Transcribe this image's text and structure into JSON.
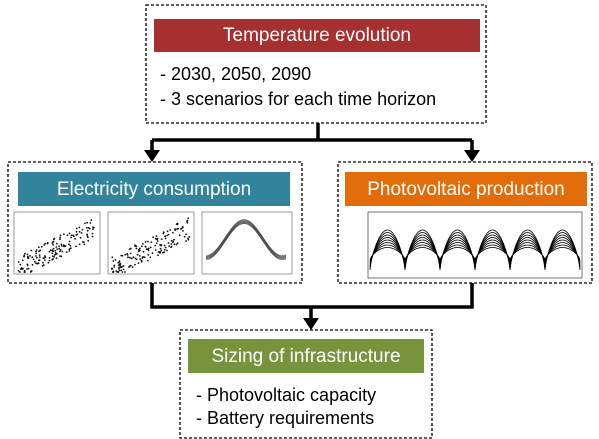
{
  "top": {
    "title": "Temperature evolution",
    "items": [
      "- 2030, 2050, 2090",
      "- 3 scenarios for each time horizon"
    ]
  },
  "left": {
    "title": "Electricity consumption"
  },
  "right": {
    "title": "Photovoltaic production"
  },
  "bottom": {
    "title": "Sizing of infrastructure",
    "items": [
      "- Photovoltaic capacity",
      "- Battery requirements"
    ]
  }
}
